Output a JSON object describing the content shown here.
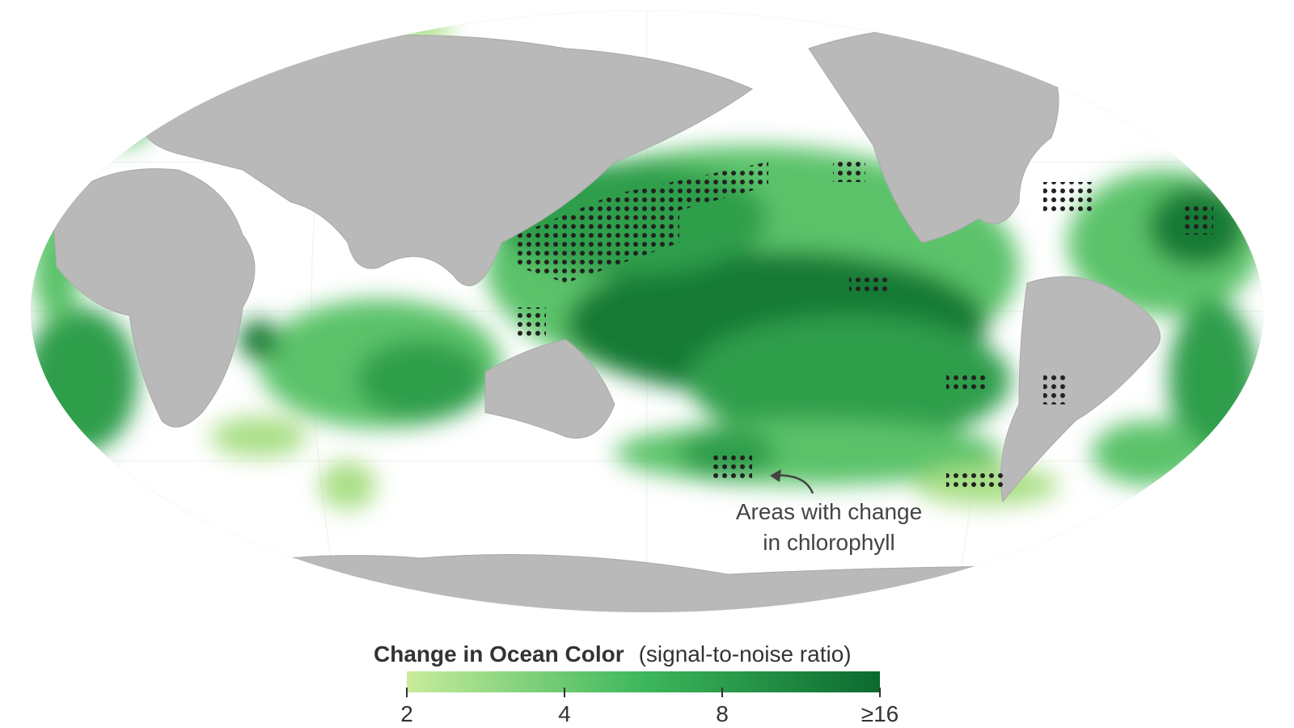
{
  "map": {
    "annotation": [
      "Areas with change",
      "in chlorophyll"
    ],
    "legend": {
      "title": "Change in Ocean Color",
      "subtitle": "(signal-to-noise ratio)",
      "scale": "log",
      "lim": [
        2,
        16
      ],
      "ticks": [
        2,
        4,
        8,
        {
          "value": 16,
          "label": "≥16"
        }
      ],
      "colors": [
        "#c8ec9c",
        "#3db75c",
        "#0b6a2f"
      ]
    }
  }
}
